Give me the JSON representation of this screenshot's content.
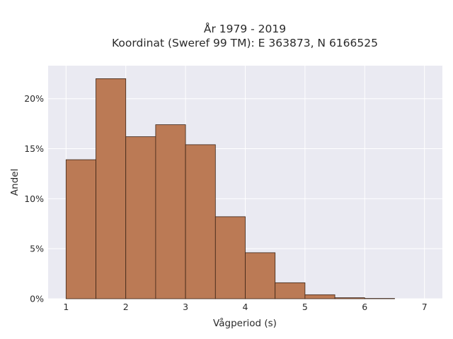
{
  "chart_data": {
    "type": "bar",
    "title": "År 1979 - 2019",
    "subtitle": "Koordinat (Sweref 99 TM): E 363873, N 6166525",
    "xlabel": "Vågperiod (s)",
    "ylabel": "Andel",
    "bin_edges": [
      1.0,
      1.5,
      2.0,
      2.5,
      3.0,
      3.5,
      4.0,
      4.5,
      5.0,
      5.5,
      6.0,
      6.5
    ],
    "values": [
      13.9,
      22.0,
      16.2,
      17.4,
      15.4,
      8.2,
      4.6,
      1.6,
      0.4,
      0.1,
      0.03
    ],
    "xlim": [
      0.7,
      7.3
    ],
    "ylim": [
      0,
      23.3
    ],
    "x_ticks": [
      1,
      2,
      3,
      4,
      5,
      6,
      7
    ],
    "y_ticks": [
      0,
      5,
      10,
      15,
      20
    ],
    "y_tick_labels": [
      "0%",
      "5%",
      "10%",
      "15%",
      "20%"
    ],
    "grid": true,
    "bar_color": "#bb7a55",
    "bar_edge_color": "#3b2416",
    "plot_background": "#eaeaf2",
    "grid_color": "#ffffff"
  }
}
